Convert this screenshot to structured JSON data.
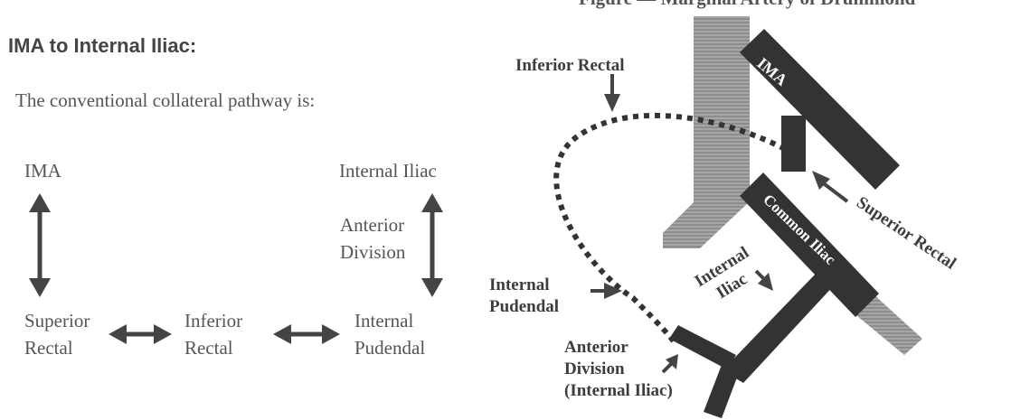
{
  "top_caption": "Figure — Marginal Artery of Drummond",
  "title": "IMA to Internal Iliac:",
  "intro": "The conventional collateral pathway is:",
  "pathway": {
    "ima": "IMA",
    "internal_iliac": "Internal Iliac",
    "anterior_division": [
      "Anterior",
      "Division"
    ],
    "superior_rectal": [
      "Superior",
      "Rectal"
    ],
    "inferior_rectal": [
      "Inferior",
      "Rectal"
    ],
    "internal_pudendal": [
      "Internal",
      "Pudendal"
    ]
  },
  "anatomy": {
    "ima": "IMA",
    "common_iliac": "Common Iliac",
    "internal_iliac": [
      "Internal",
      "Iliac"
    ],
    "inferior_rectal": "Inferior Rectal",
    "superior_rectal": "Superior Rectal",
    "internal_pudendal": [
      "Internal",
      "Pudendal"
    ],
    "anterior_division": [
      "Anterior",
      "Division",
      "(Internal Iliac)"
    ]
  },
  "colors": {
    "vessel": "#333333",
    "aorta_stripe": "#9a9a9a",
    "arrow": "#444444",
    "text": "#555555"
  }
}
